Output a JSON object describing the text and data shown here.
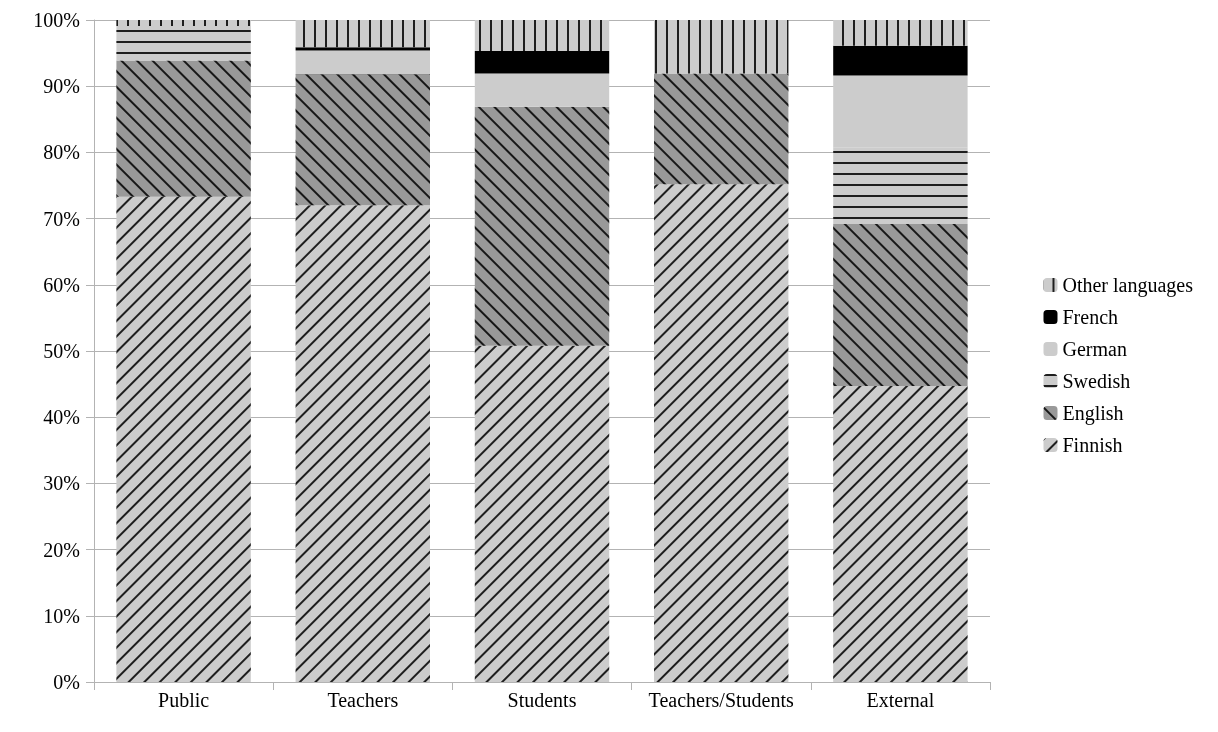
{
  "chart_data": {
    "type": "bar",
    "stacked": true,
    "categories": [
      "Public",
      "Teachers",
      "Students",
      "Teachers/Students",
      "External"
    ],
    "series": [
      {
        "name": "Finnish",
        "color": "#cccccc",
        "values": [
          73.3,
          72.0,
          50.8,
          75.2,
          44.7
        ]
      },
      {
        "name": "English",
        "color": "#999999",
        "values": [
          20.6,
          19.8,
          36.1,
          16.7,
          24.5
        ]
      },
      {
        "name": "Swedish",
        "color": "#cccccc",
        "values": [
          5.2,
          0.5,
          0.4,
          0,
          11.5
        ]
      },
      {
        "name": "German",
        "color": "#cccccc",
        "values": [
          0,
          3.1,
          4.6,
          0,
          10.9
        ]
      },
      {
        "name": "French",
        "color": "#000000",
        "values": [
          0,
          0.5,
          3.4,
          0,
          4.5
        ]
      },
      {
        "name": "Other languages",
        "color": "#cccccc",
        "values": [
          0.9,
          4.1,
          4.7,
          8.1,
          3.9
        ]
      }
    ],
    "ylim": [
      0,
      100
    ],
    "yticks": [
      {
        "value": 0,
        "label": "0%"
      },
      {
        "value": 10,
        "label": "10%"
      },
      {
        "value": 20,
        "label": "20%"
      },
      {
        "value": 30,
        "label": "30%"
      },
      {
        "value": 40,
        "label": "40%"
      },
      {
        "value": 50,
        "label": "50%"
      },
      {
        "value": 60,
        "label": "60%"
      },
      {
        "value": 70,
        "label": "70%"
      },
      {
        "value": 80,
        "label": "80%"
      },
      {
        "value": 90,
        "label": "90%"
      },
      {
        "value": 100,
        "label": "100%"
      }
    ],
    "grid": "y",
    "legend": "right"
  }
}
